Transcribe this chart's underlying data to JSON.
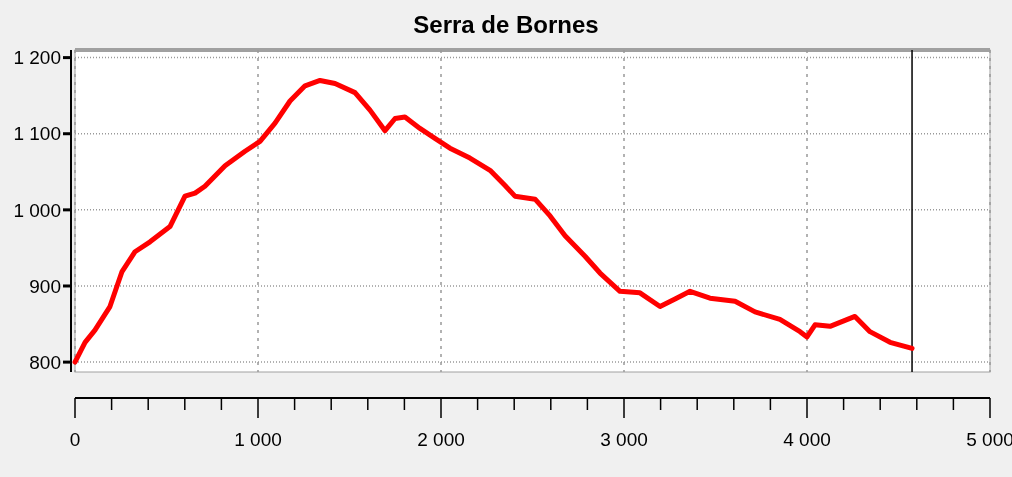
{
  "chart_data": {
    "type": "line",
    "title": "Serra de Bornes",
    "x": [
      0,
      55,
      109,
      191,
      257,
      328,
      410,
      519,
      601,
      656,
      710,
      820,
      929,
      1011,
      1093,
      1175,
      1257,
      1339,
      1421,
      1530,
      1612,
      1694,
      1749,
      1803,
      1885,
      1967,
      2049,
      2158,
      2268,
      2350,
      2404,
      2514,
      2596,
      2678,
      2787,
      2869,
      2978,
      3087,
      3197,
      3279,
      3361,
      3470,
      3607,
      3716,
      3852,
      3962,
      4000,
      4044,
      4126,
      4262,
      4344,
      4454,
      4574
    ],
    "series": [
      {
        "color": "#ff0000",
        "values": [
          800,
          826,
          842,
          873,
          919,
          945,
          958,
          978,
          1018,
          1022,
          1031,
          1058,
          1077,
          1090,
          1114,
          1143,
          1163,
          1170,
          1166,
          1154,
          1131,
          1104,
          1120,
          1122,
          1107,
          1094,
          1081,
          1068,
          1052,
          1032,
          1018,
          1014,
          992,
          966,
          939,
          917,
          893,
          891,
          873,
          883,
          893,
          884,
          880,
          866,
          856,
          840,
          833,
          849,
          847,
          860,
          840,
          826,
          818
        ]
      }
    ],
    "xlim": [
      0,
      5000
    ],
    "xticks": [
      0,
      {
        "value": 1000,
        "label": "1 000"
      },
      {
        "value": 2000,
        "label": "2 000"
      },
      {
        "value": 3000,
        "label": "3 000"
      },
      {
        "value": 4000,
        "label": "4 000"
      },
      {
        "value": 5000,
        "label": "5 000"
      }
    ],
    "ylim": [
      787,
      1210
    ],
    "yticks": [
      800,
      900,
      {
        "value": 1000,
        "label": "1 000"
      },
      {
        "value": 1100,
        "label": "1 100"
      },
      {
        "value": 1200,
        "label": "1 200"
      }
    ],
    "grid": true,
    "marker": "none",
    "line_style": "solid",
    "ref_lines": [
      {
        "axis": "x",
        "value": 4574,
        "color": "#000000"
      }
    ]
  }
}
